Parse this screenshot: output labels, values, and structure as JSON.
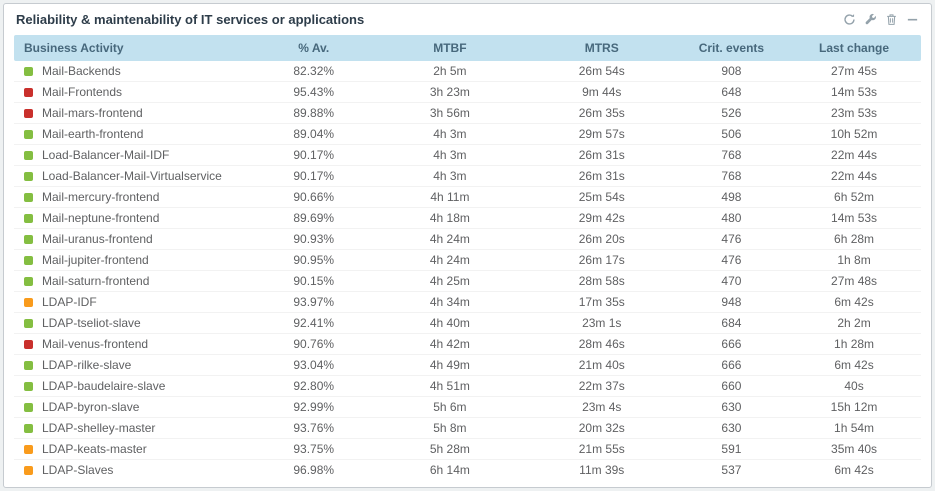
{
  "widget": {
    "title": "Reliability & maintenability of IT services or applications",
    "toolbar_icons": [
      "refresh-icon",
      "wrench-icon",
      "trash-icon",
      "minimize-icon"
    ]
  },
  "table": {
    "columns": [
      "Business Activity",
      "% Av.",
      "MTBF",
      "MTRS",
      "Crit. events",
      "Last change"
    ],
    "rows": [
      {
        "status": "green",
        "name": "Mail-Backends",
        "av": "82.32%",
        "mtbf": "2h 5m",
        "mtrs": "26m 54s",
        "crit": "908",
        "last": "27m 45s"
      },
      {
        "status": "red",
        "name": "Mail-Frontends",
        "av": "95.43%",
        "mtbf": "3h 23m",
        "mtrs": "9m 44s",
        "crit": "648",
        "last": "14m 53s"
      },
      {
        "status": "red",
        "name": "Mail-mars-frontend",
        "av": "89.88%",
        "mtbf": "3h 56m",
        "mtrs": "26m 35s",
        "crit": "526",
        "last": "23m 53s"
      },
      {
        "status": "green",
        "name": "Mail-earth-frontend",
        "av": "89.04%",
        "mtbf": "4h 3m",
        "mtrs": "29m 57s",
        "crit": "506",
        "last": "10h 52m"
      },
      {
        "status": "green",
        "name": "Load-Balancer-Mail-IDF",
        "av": "90.17%",
        "mtbf": "4h 3m",
        "mtrs": "26m 31s",
        "crit": "768",
        "last": "22m 44s"
      },
      {
        "status": "green",
        "name": "Load-Balancer-Mail-Virtualservice",
        "av": "90.17%",
        "mtbf": "4h 3m",
        "mtrs": "26m 31s",
        "crit": "768",
        "last": "22m 44s"
      },
      {
        "status": "green",
        "name": "Mail-mercury-frontend",
        "av": "90.66%",
        "mtbf": "4h 11m",
        "mtrs": "25m 54s",
        "crit": "498",
        "last": "6h 52m"
      },
      {
        "status": "green",
        "name": "Mail-neptune-frontend",
        "av": "89.69%",
        "mtbf": "4h 18m",
        "mtrs": "29m 42s",
        "crit": "480",
        "last": "14m 53s"
      },
      {
        "status": "green",
        "name": "Mail-uranus-frontend",
        "av": "90.93%",
        "mtbf": "4h 24m",
        "mtrs": "26m 20s",
        "crit": "476",
        "last": "6h 28m"
      },
      {
        "status": "green",
        "name": "Mail-jupiter-frontend",
        "av": "90.95%",
        "mtbf": "4h 24m",
        "mtrs": "26m 17s",
        "crit": "476",
        "last": "1h 8m"
      },
      {
        "status": "green",
        "name": "Mail-saturn-frontend",
        "av": "90.15%",
        "mtbf": "4h 25m",
        "mtrs": "28m 58s",
        "crit": "470",
        "last": "27m 48s"
      },
      {
        "status": "orange",
        "name": "LDAP-IDF",
        "av": "93.97%",
        "mtbf": "4h 34m",
        "mtrs": "17m 35s",
        "crit": "948",
        "last": "6m 42s"
      },
      {
        "status": "green",
        "name": "LDAP-tseliot-slave",
        "av": "92.41%",
        "mtbf": "4h 40m",
        "mtrs": "23m 1s",
        "crit": "684",
        "last": "2h 2m"
      },
      {
        "status": "red",
        "name": "Mail-venus-frontend",
        "av": "90.76%",
        "mtbf": "4h 42m",
        "mtrs": "28m 46s",
        "crit": "666",
        "last": "1h 28m"
      },
      {
        "status": "green",
        "name": "LDAP-rilke-slave",
        "av": "93.04%",
        "mtbf": "4h 49m",
        "mtrs": "21m 40s",
        "crit": "666",
        "last": "6m 42s"
      },
      {
        "status": "green",
        "name": "LDAP-baudelaire-slave",
        "av": "92.80%",
        "mtbf": "4h 51m",
        "mtrs": "22m 37s",
        "crit": "660",
        "last": "40s"
      },
      {
        "status": "green",
        "name": "LDAP-byron-slave",
        "av": "92.99%",
        "mtbf": "5h 6m",
        "mtrs": "23m 4s",
        "crit": "630",
        "last": "15h 12m"
      },
      {
        "status": "green",
        "name": "LDAP-shelley-master",
        "av": "93.76%",
        "mtbf": "5h 8m",
        "mtrs": "20m 32s",
        "crit": "630",
        "last": "1h 54m"
      },
      {
        "status": "orange",
        "name": "LDAP-keats-master",
        "av": "93.75%",
        "mtbf": "5h 28m",
        "mtrs": "21m 55s",
        "crit": "591",
        "last": "35m 40s"
      },
      {
        "status": "orange",
        "name": "LDAP-Slaves",
        "av": "96.98%",
        "mtbf": "6h 14m",
        "mtrs": "11m 39s",
        "crit": "537",
        "last": "6m 42s"
      }
    ]
  },
  "colors": {
    "green": "#84be41",
    "red": "#c9302c",
    "orange": "#f99b1c",
    "header_bg": "#c2e1ef",
    "header_text": "#47687c",
    "icon": "#94a2ab"
  }
}
